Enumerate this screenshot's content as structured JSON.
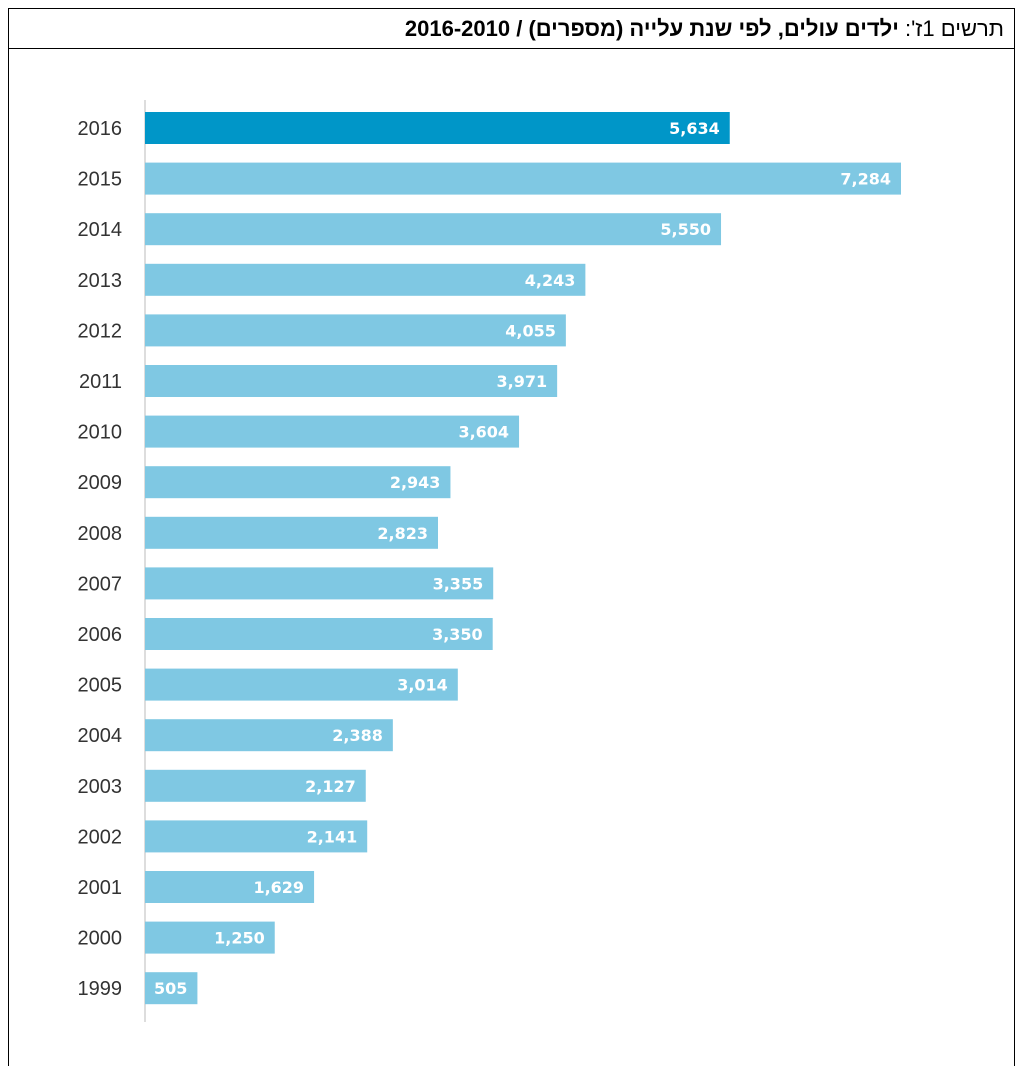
{
  "title": {
    "prefix": "תרשים 1ז': ",
    "main": "ילדים עולים, לפי שנת עלייה (מספרים) / 2016-2010"
  },
  "colors": {
    "highlight": "#0096C8",
    "bar": "#7FC8E3",
    "axis": "#BBBBBB"
  },
  "chart_data": {
    "type": "bar",
    "orientation": "horizontal",
    "categories": [
      "2016",
      "2015",
      "2014",
      "2013",
      "2012",
      "2011",
      "2010",
      "2009",
      "2008",
      "2007",
      "2006",
      "2005",
      "2004",
      "2003",
      "2002",
      "2001",
      "2000",
      "1999"
    ],
    "values": [
      5634,
      7284,
      5550,
      4243,
      4055,
      3971,
      3604,
      2943,
      2823,
      3355,
      3350,
      3014,
      2388,
      2127,
      2141,
      1629,
      1250,
      505
    ],
    "value_labels": [
      "5,634",
      "7,284",
      "5,550",
      "4,243",
      "4,055",
      "3,971",
      "3,604",
      "2,943",
      "2,823",
      "3,355",
      "3,350",
      "3,014",
      "2,388",
      "2,127",
      "2,141",
      "1,629",
      "1,250",
      "505"
    ],
    "highlight_category": "2016",
    "xlim": [
      0,
      7284
    ],
    "grid": false,
    "legend": "none"
  }
}
